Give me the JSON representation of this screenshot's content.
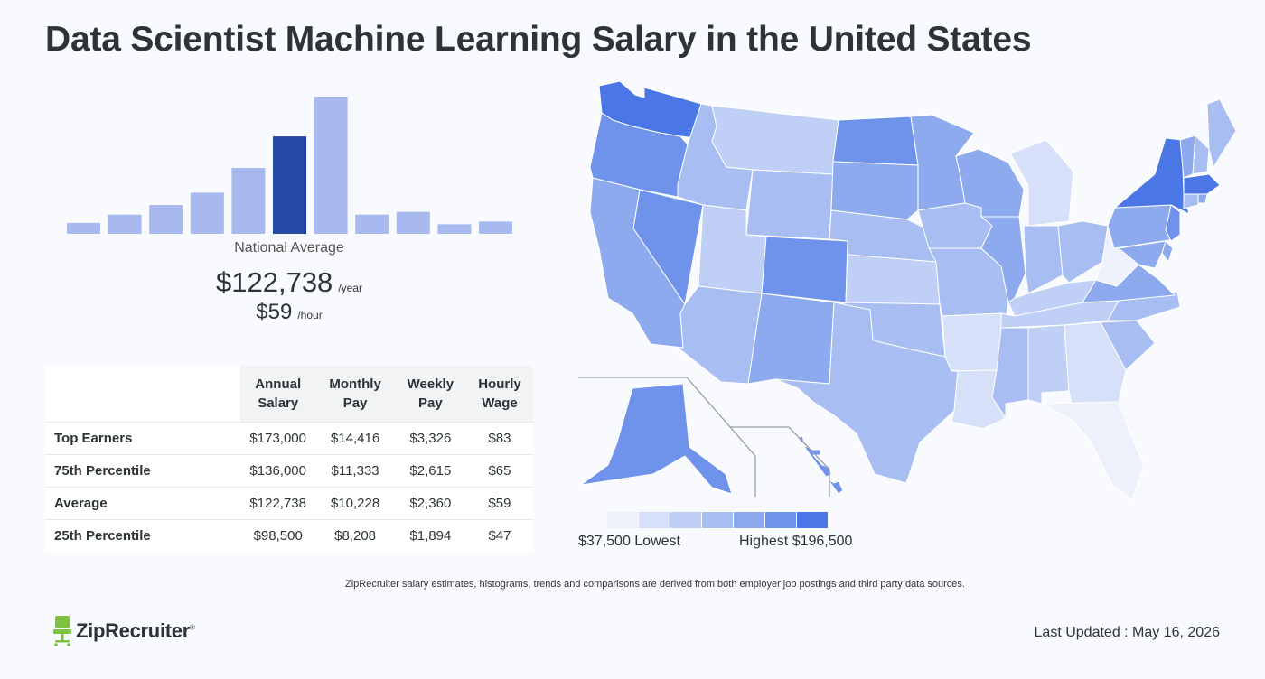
{
  "page": {
    "title": "Data Scientist Machine Learning Salary in the United States",
    "footnote": "ZipRecruiter salary estimates, histograms, trends and comparisons are derived from both employer job postings and third party data sources.",
    "brand": "ZipRecruiter",
    "brand_mark": "®",
    "last_updated": "Last Updated : May 16, 2026"
  },
  "summary": {
    "label": "National Average",
    "annual": "$122,738",
    "annual_unit": "/year",
    "hourly": "$59",
    "hourly_unit": "/hour"
  },
  "table": {
    "headers": [
      {
        "line1": "Annual",
        "line2": "Salary"
      },
      {
        "line1": "Monthly",
        "line2": "Pay"
      },
      {
        "line1": "Weekly",
        "line2": "Pay"
      },
      {
        "line1": "Hourly",
        "line2": "Wage"
      }
    ],
    "rows": [
      {
        "label": "Top Earners",
        "annual": "$173,000",
        "monthly": "$14,416",
        "weekly": "$3,326",
        "hourly": "$83"
      },
      {
        "label": "75th Percentile",
        "annual": "$136,000",
        "monthly": "$11,333",
        "weekly": "$2,615",
        "hourly": "$65"
      },
      {
        "label": "Average",
        "annual": "$122,738",
        "monthly": "$10,228",
        "weekly": "$2,360",
        "hourly": "$59"
      },
      {
        "label": "25th Percentile",
        "annual": "$98,500",
        "monthly": "$8,208",
        "weekly": "$1,894",
        "hourly": "$47"
      }
    ]
  },
  "legend": {
    "low": "$37,500 Lowest",
    "high": "Highest $196,500",
    "colors": [
      "#edf1fb",
      "#d6e0f8",
      "#c0cff5",
      "#a8bdf1",
      "#8eaaee",
      "#6f93ea",
      "#4a76e6"
    ]
  },
  "chart_data": [
    {
      "type": "bar",
      "values": [
        8,
        14,
        21,
        30,
        48,
        71,
        100,
        14,
        16,
        7,
        9
      ],
      "highlight_index": 5,
      "colors": {
        "bar": "#a8b9f0",
        "highlight": "#2649a6"
      },
      "grid": false
    },
    {
      "type": "choropleth",
      "region": "United States",
      "scale_min": 37500,
      "scale_max": 196500,
      "levels": {
        "WA": 6,
        "OR": 5,
        "CA": 4,
        "NV": 5,
        "ID": 3,
        "MT": 2,
        "WY": 3,
        "UT": 2,
        "AZ": 3,
        "CO": 5,
        "NM": 4,
        "ND": 5,
        "SD": 4,
        "NE": 3,
        "KS": 2,
        "OK": 3,
        "TX": 3,
        "MN": 4,
        "IA": 3,
        "MO": 3,
        "AR": 1,
        "LA": 1,
        "WI": 4,
        "IL": 4,
        "MS": 3,
        "MI": 1,
        "IN": 3,
        "OH": 3,
        "KY": 2,
        "TN": 2,
        "AL": 2,
        "GA": 1,
        "FL": 0,
        "SC": 3,
        "NC": 3,
        "VA": 4,
        "WV": 0,
        "PA": 4,
        "NY": 6,
        "VT": 4,
        "NH": 3,
        "ME": 3,
        "MA": 6,
        "RI": 4,
        "CT": 3,
        "NJ": 5,
        "DE": 4,
        "MD": 4,
        "AK": 5,
        "HI": 5
      }
    }
  ]
}
